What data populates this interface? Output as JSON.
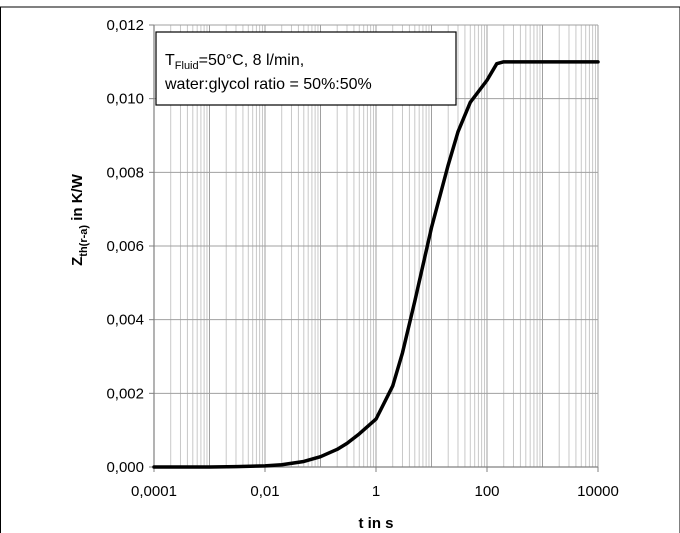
{
  "chart_data": {
    "type": "line",
    "title": "",
    "xlabel": "t in s",
    "ylabel": {
      "main": "Z",
      "sub": "th(r-a)",
      "rest": " in K/W"
    },
    "x_scale": "log",
    "xlim": [
      0.0001,
      10000
    ],
    "ylim": [
      0,
      0.012
    ],
    "grid": true,
    "x_tick_labels": [
      "0,0001",
      "0,01",
      "1",
      "100",
      "10000"
    ],
    "x_tick_values": [
      0.0001,
      0.01,
      1,
      100,
      10000
    ],
    "y_tick_labels": [
      "0,000",
      "0,002",
      "0,004",
      "0,006",
      "0,008",
      "0,010",
      "0,012"
    ],
    "y_tick_values": [
      0,
      0.002,
      0.004,
      0.006,
      0.008,
      0.01,
      0.012
    ],
    "annotation": {
      "line1_main": "T",
      "line1_sub": "Fluid",
      "line1_rest": "=50°C, 8 l/min,",
      "line2": "water:glycol ratio = 50%:50%"
    },
    "series": [
      {
        "color": "#000000",
        "x": [
          0.0001,
          0.001,
          0.003,
          0.01,
          0.02,
          0.05,
          0.1,
          0.2,
          0.3,
          0.5,
          1,
          2,
          3,
          5,
          10,
          20,
          30,
          50,
          100,
          150,
          200,
          500,
          1000,
          10000
        ],
        "y": [
          0.0,
          0.0,
          1e-05,
          3e-05,
          6e-05,
          0.00015,
          0.00028,
          0.00048,
          0.00064,
          0.0009,
          0.0013,
          0.0022,
          0.0031,
          0.0045,
          0.0065,
          0.0082,
          0.0091,
          0.0099,
          0.0105,
          0.01095,
          0.011,
          0.011,
          0.011,
          0.011
        ]
      }
    ]
  }
}
